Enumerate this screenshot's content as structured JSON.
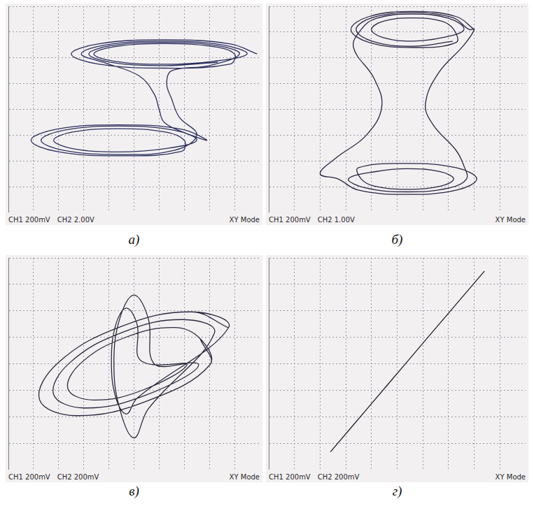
{
  "chart_data": [
    {
      "type": "scatter",
      "panel": "а)",
      "status": [
        "CH1 200mV",
        "CH2 2.00V",
        "XY Mode"
      ],
      "color": "#2c2f5c",
      "marker": "none",
      "line_style": "solid",
      "grid": true,
      "tick_labels": false,
      "xlim": [
        -5,
        5
      ],
      "xticks": [
        -5,
        -4,
        -3,
        -2,
        -1,
        0,
        1,
        2,
        3,
        4,
        5
      ],
      "ylim": [
        -4,
        4
      ],
      "yticks": [
        -4,
        -3,
        -2,
        -1,
        0,
        1,
        2,
        3,
        4
      ],
      "x": [
        4.9,
        3.83,
        1.2,
        -1.43,
        -2.5,
        -1.43,
        1.2,
        3.83,
        4.0,
        3.19,
        1.2,
        -0.79,
        -1.6,
        -0.79,
        1.2,
        3.19,
        4.5,
        3.54,
        1.2,
        -1.14,
        -2.1,
        -1.14,
        0.2,
        0.8,
        1.0,
        1.2,
        2.0,
        2.9,
        1.89,
        -0.6,
        -3.09,
        -4.1,
        -3.09,
        -0.6,
        1.89,
        2.0,
        1.25,
        -0.6,
        -2.45,
        -3.2,
        -2.45,
        -0.6,
        1.25,
        2.5,
        1.6,
        -0.6,
        -2.8,
        -3.7,
        -2.8,
        -0.6,
        1.6,
        2.5,
        1.8,
        1.5,
        1.3,
        1.5,
        3.0,
        4.2,
        3.33,
        1.2,
        -0.93,
        -1.8,
        -0.93,
        1.2,
        3.33
      ],
      "values": [
        2.15,
        2.54,
        2.7,
        2.54,
        2.15,
        1.76,
        1.6,
        1.76,
        2.15,
        2.43,
        2.55,
        2.43,
        2.15,
        1.87,
        1.75,
        1.87,
        2.15,
        2.5,
        2.65,
        2.5,
        2.15,
        1.8,
        1.3,
        0.6,
        0.0,
        -0.5,
        -0.9,
        -1.2,
        -0.77,
        -0.6,
        -0.77,
        -1.2,
        -1.63,
        -1.8,
        -1.63,
        -1.2,
        -0.88,
        -0.75,
        -0.88,
        -1.2,
        -1.52,
        -1.65,
        -1.52,
        -1.2,
        -0.81,
        -0.65,
        -0.81,
        -1.2,
        -1.59,
        -1.75,
        -1.59,
        -1.0,
        -0.3,
        0.4,
        1.0,
        1.5,
        1.7,
        2.15,
        2.47,
        2.6,
        2.47,
        2.15,
        1.83,
        1.7,
        1.83
      ]
    },
    {
      "type": "scatter",
      "panel": "б)",
      "status": [
        "CH1 200mV",
        "CH2 1.00V",
        "XY Mode"
      ],
      "color": "#2a2542",
      "marker": "none",
      "line_style": "solid",
      "grid": true,
      "tick_labels": false,
      "xlim": [
        -5,
        5
      ],
      "xticks": [
        -5,
        -4,
        -3,
        -2,
        -1,
        0,
        1,
        2,
        3,
        4,
        5
      ],
      "ylim": [
        -4,
        4
      ],
      "yticks": [
        -4,
        -3,
        -2,
        -1,
        0,
        1,
        2,
        3,
        4
      ],
      "x": [
        3.0,
        2.3,
        0.6,
        -1.1,
        -1.8,
        -1.1,
        0.6,
        2.3,
        2.2,
        1.74,
        0.6,
        -0.54,
        -1.0,
        -0.54,
        0.6,
        1.74,
        2.6,
        2.02,
        0.6,
        -0.82,
        -1.4,
        -1.7,
        -0.9,
        -0.6,
        -1.2,
        -2.4,
        -3.0,
        -2.3,
        -1.52,
        0.4,
        2.32,
        3.1,
        2.32,
        0.4,
        -1.52,
        -1.4,
        -0.88,
        0.4,
        1.68,
        2.2,
        1.68,
        0.4,
        -0.88,
        -1.9,
        -1.23,
        0.4,
        2.03,
        2.7,
        2.6,
        2.3,
        1.4,
        1.1,
        1.6,
        2.6,
        3.0,
        2.8,
        2.16,
        0.6,
        -0.96,
        -1.6,
        -0.96,
        0.6,
        2.16
      ],
      "values": [
        3.1,
        3.6,
        3.8,
        3.6,
        3.1,
        2.6,
        2.4,
        2.6,
        3.1,
        3.42,
        3.55,
        3.42,
        3.1,
        2.78,
        2.65,
        2.78,
        3.1,
        3.53,
        3.7,
        3.53,
        3.1,
        2.4,
        1.2,
        0.1,
        -1.0,
        -1.9,
        -2.5,
        -2.7,
        -3.13,
        -3.3,
        -3.13,
        -2.7,
        -2.27,
        -2.1,
        -2.27,
        -2.7,
        -2.98,
        -3.1,
        -2.98,
        -2.7,
        -2.42,
        -2.3,
        -2.42,
        -2.7,
        -3.05,
        -3.2,
        -3.05,
        -2.7,
        -2.2,
        -1.6,
        -0.6,
        0.2,
        1.4,
        2.5,
        3.1,
        3.1,
        3.56,
        3.75,
        3.56,
        3.1,
        2.64,
        2.45,
        2.64
      ]
    },
    {
      "type": "scatter",
      "panel": "в)",
      "status": [
        "CH1 200mV",
        "CH2 200mV",
        "XY Mode"
      ],
      "color": "#2a2a3c",
      "marker": "none",
      "line_style": "solid",
      "grid": true,
      "tick_labels": false,
      "xlim": [
        -5,
        5
      ],
      "xticks": [
        -5,
        -4,
        -3,
        -2,
        -1,
        0,
        1,
        2,
        3,
        4,
        5
      ],
      "ylim": [
        -4,
        4
      ],
      "yticks": [
        -4,
        -3,
        -2,
        -1,
        0,
        1,
        2,
        3,
        4
      ],
      "x": [
        3.76,
        2.3,
        -0.51,
        -3.02,
        -3.76,
        -2.3,
        0.51,
        3.02,
        2.63,
        1.61,
        -0.36,
        -2.11,
        -2.63,
        -1.61,
        0.36,
        2.11,
        0.8,
        0.57,
        0.0,
        -0.57,
        -0.8,
        -0.57,
        0.0,
        0.57,
        3.2,
        1.96,
        -0.43,
        -2.57,
        -3.2,
        -1.96,
        0.43,
        2.57,
        0.3,
        0.12,
        -0.3,
        -0.72,
        -0.9,
        -0.72,
        -0.3,
        0.12,
        3.76,
        2.3,
        -0.51,
        -3.02,
        -3.76,
        -2.3,
        0.51,
        3.02,
        2.63
      ],
      "values": [
        1.36,
        1.96,
        1.41,
        0.04,
        -1.36,
        -1.96,
        -1.41,
        -0.04,
        0.95,
        1.37,
        0.99,
        0.03,
        -0.95,
        -1.37,
        -0.99,
        -0.03,
        0.0,
        1.7,
        2.6,
        1.7,
        0.0,
        -1.7,
        -2.8,
        -1.7,
        1.16,
        1.67,
        1.2,
        0.03,
        -1.16,
        -1.67,
        -1.2,
        -0.03,
        0.1,
        1.5,
        2.1,
        1.5,
        0.1,
        -1.3,
        -1.9,
        -1.3,
        1.36,
        1.96,
        1.41,
        0.04,
        -1.36,
        -1.96,
        -1.41,
        -0.04,
        0.95
      ]
    },
    {
      "type": "scatter",
      "panel": "г)",
      "status": [
        "CH1 200mV",
        "CH2 200mV",
        "XY Mode"
      ],
      "color": "#1e1e26",
      "marker": "none",
      "line_style": "solid",
      "grid": true,
      "tick_labels": false,
      "xlim": [
        -5,
        5
      ],
      "xticks": [
        -5,
        -4,
        -3,
        -2,
        -1,
        0,
        1,
        2,
        3,
        4,
        5
      ],
      "ylim": [
        -4,
        4
      ],
      "yticks": [
        -4,
        -3,
        -2,
        -1,
        0,
        1,
        2,
        3,
        4
      ],
      "x": [
        -2.6,
        -1.1,
        0.4,
        1.9,
        3.4,
        1.9,
        0.4,
        -1.1,
        -2.6
      ],
      "values": [
        -3.33,
        -1.62,
        0.09,
        1.8,
        3.5,
        1.8,
        0.09,
        -1.62,
        -3.33
      ]
    }
  ]
}
